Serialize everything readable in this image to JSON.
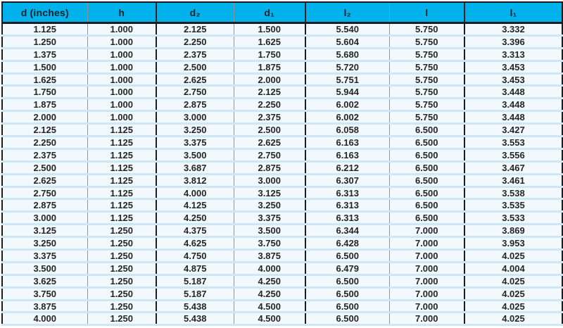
{
  "colors": {
    "header_bg": "#00b2ec",
    "header_text": "#10222b",
    "row_bg": "#f2f9fd",
    "row_separator": "#cde7f6",
    "border_dark": "#1c1c1c",
    "border_thin": "#8f9499"
  },
  "table": {
    "columns": [
      "d (inches)",
      "h",
      "d₂",
      "d₁",
      "l₂",
      "l",
      "l₁"
    ],
    "rows": [
      [
        "1.125",
        "1.000",
        "2.125",
        "1.500",
        "5.540",
        "5.750",
        "3.332"
      ],
      [
        "1.250",
        "1.000",
        "2.250",
        "1.625",
        "5.604",
        "5.750",
        "3.396"
      ],
      [
        "1.375",
        "1.000",
        "2.375",
        "1.750",
        "5.680",
        "5.750",
        "3.313"
      ],
      [
        "1.500",
        "1.000",
        "2.500",
        "1.875",
        "5.720",
        "5.750",
        "3.453"
      ],
      [
        "1.625",
        "1.000",
        "2.625",
        "2.000",
        "5.751",
        "5.750",
        "3.453"
      ],
      [
        "1.750",
        "1.000",
        "2.750",
        "2.125",
        "5.944",
        "5.750",
        "3.448"
      ],
      [
        "1.875",
        "1.000",
        "2.875",
        "2.250",
        "6.002",
        "5.750",
        "3.448"
      ],
      [
        "2.000",
        "1.000",
        "3.000",
        "2.375",
        "6.002",
        "5.750",
        "3.448"
      ],
      [
        "2.125",
        "1.125",
        "3.250",
        "2.500",
        "6.058",
        "6.500",
        "3.427"
      ],
      [
        "2.250",
        "1.125",
        "3.375",
        "2.625",
        "6.163",
        "6.500",
        "3.553"
      ],
      [
        "2.375",
        "1.125",
        "3.500",
        "2.750",
        "6.163",
        "6.500",
        "3.556"
      ],
      [
        "2.500",
        "1.125",
        "3.687",
        "2.875",
        "6.212",
        "6.500",
        "3.467"
      ],
      [
        "2.625",
        "1.125",
        "3.812",
        "3.000",
        "6.307",
        "6.500",
        "3.461"
      ],
      [
        "2.750",
        "1.125",
        "4.000",
        "3.125",
        "6.313",
        "6.500",
        "3.538"
      ],
      [
        "2.875",
        "1.125",
        "4.125",
        "3.250",
        "6.313",
        "6.500",
        "3.535"
      ],
      [
        "3.000",
        "1.125",
        "4.250",
        "3.375",
        "6.313",
        "6.500",
        "3.533"
      ],
      [
        "3.125",
        "1.250",
        "4.375",
        "3.500",
        "6.344",
        "7.000",
        "3.869"
      ],
      [
        "3.250",
        "1.250",
        "4.625",
        "3.750",
        "6.428",
        "7.000",
        "3.953"
      ],
      [
        "3.375",
        "1.250",
        "4.750",
        "3.875",
        "6.500",
        "7.000",
        "4.025"
      ],
      [
        "3.500",
        "1.250",
        "4.875",
        "4.000",
        "6.479",
        "7.000",
        "4.004"
      ],
      [
        "3.625",
        "1.250",
        "5.187",
        "4.250",
        "6.500",
        "7.000",
        "4.025"
      ],
      [
        "3.750",
        "1.250",
        "5.187",
        "4.250",
        "6.500",
        "7.000",
        "4.025"
      ],
      [
        "3.875",
        "1.250",
        "5.438",
        "4.500",
        "6.500",
        "7.000",
        "4.025"
      ],
      [
        "4.000",
        "1.250",
        "5.438",
        "4.500",
        "6.500",
        "7.000",
        "4.025"
      ]
    ]
  }
}
